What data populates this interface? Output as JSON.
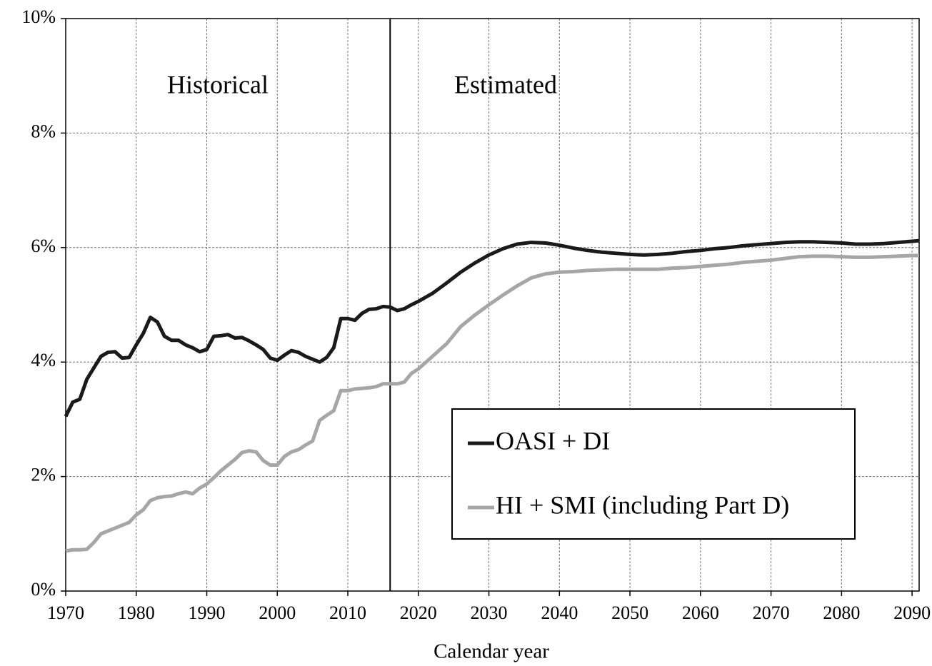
{
  "chart_data": {
    "type": "line",
    "x_label": "Calendar year",
    "annotations": [
      "Historical",
      "Estimated"
    ],
    "vertical_line_x": 2016,
    "x": [
      1970,
      1971,
      1972,
      1973,
      1974,
      1975,
      1976,
      1977,
      1978,
      1979,
      1980,
      1981,
      1982,
      1983,
      1984,
      1985,
      1986,
      1987,
      1988,
      1989,
      1990,
      1991,
      1992,
      1993,
      1994,
      1995,
      1996,
      1997,
      1998,
      1999,
      2000,
      2001,
      2002,
      2003,
      2004,
      2005,
      2006,
      2007,
      2008,
      2009,
      2010,
      2011,
      2012,
      2013,
      2014,
      2015,
      2016,
      2017,
      2018,
      2019,
      2020,
      2022,
      2024,
      2026,
      2028,
      2030,
      2032,
      2034,
      2036,
      2038,
      2040,
      2042,
      2044,
      2046,
      2048,
      2050,
      2052,
      2054,
      2056,
      2058,
      2060,
      2062,
      2064,
      2066,
      2068,
      2070,
      2072,
      2074,
      2076,
      2078,
      2080,
      2082,
      2084,
      2086,
      2088,
      2090,
      2091
    ],
    "series": [
      {
        "name": "OASI + DI",
        "color": "#1a1a1a",
        "values": [
          3.05,
          3.3,
          3.35,
          3.7,
          3.9,
          4.1,
          4.17,
          4.18,
          4.07,
          4.08,
          4.3,
          4.5,
          4.78,
          4.7,
          4.45,
          4.38,
          4.38,
          4.3,
          4.25,
          4.18,
          4.22,
          4.45,
          4.46,
          4.48,
          4.42,
          4.43,
          4.37,
          4.3,
          4.22,
          4.07,
          4.03,
          4.12,
          4.2,
          4.17,
          4.1,
          4.05,
          4.0,
          4.08,
          4.25,
          4.76,
          4.76,
          4.73,
          4.85,
          4.92,
          4.93,
          4.97,
          4.96,
          4.9,
          4.93,
          5.0,
          5.06,
          5.2,
          5.38,
          5.57,
          5.73,
          5.87,
          5.98,
          6.06,
          6.09,
          6.08,
          6.04,
          5.99,
          5.95,
          5.92,
          5.9,
          5.88,
          5.87,
          5.88,
          5.9,
          5.93,
          5.95,
          5.98,
          6.0,
          6.03,
          6.05,
          6.07,
          6.09,
          6.1,
          6.1,
          6.09,
          6.08,
          6.06,
          6.06,
          6.07,
          6.09,
          6.11,
          6.12
        ]
      },
      {
        "name": "HI + SMI (including Part D)",
        "color": "#a6a6a6",
        "values": [
          0.7,
          0.72,
          0.72,
          0.73,
          0.85,
          1.0,
          1.05,
          1.1,
          1.15,
          1.2,
          1.33,
          1.42,
          1.58,
          1.63,
          1.65,
          1.66,
          1.7,
          1.73,
          1.7,
          1.8,
          1.87,
          1.98,
          2.1,
          2.2,
          2.3,
          2.42,
          2.45,
          2.43,
          2.28,
          2.2,
          2.2,
          2.35,
          2.43,
          2.47,
          2.55,
          2.62,
          2.98,
          3.07,
          3.15,
          3.5,
          3.5,
          3.53,
          3.54,
          3.55,
          3.57,
          3.62,
          3.62,
          3.62,
          3.65,
          3.8,
          3.88,
          4.1,
          4.32,
          4.62,
          4.82,
          5.0,
          5.17,
          5.33,
          5.47,
          5.54,
          5.57,
          5.58,
          5.6,
          5.61,
          5.62,
          5.62,
          5.62,
          5.62,
          5.64,
          5.65,
          5.67,
          5.69,
          5.71,
          5.74,
          5.76,
          5.78,
          5.81,
          5.84,
          5.85,
          5.85,
          5.84,
          5.83,
          5.83,
          5.84,
          5.85,
          5.86,
          5.86
        ]
      }
    ],
    "xlim": [
      1970,
      2091
    ],
    "xticks": [
      1970,
      1980,
      1990,
      2000,
      2010,
      2020,
      2030,
      2040,
      2050,
      2060,
      2070,
      2080,
      2090
    ],
    "ylim": [
      0,
      10
    ],
    "yticks": [
      {
        "value": 0,
        "label": "0%"
      },
      {
        "value": 2,
        "label": "2%"
      },
      {
        "value": 4,
        "label": "4%"
      },
      {
        "value": 6,
        "label": "6%"
      },
      {
        "value": 8,
        "label": "8%"
      },
      {
        "value": 10,
        "label": "10%"
      }
    ],
    "grid": true,
    "legend": "lower right"
  }
}
